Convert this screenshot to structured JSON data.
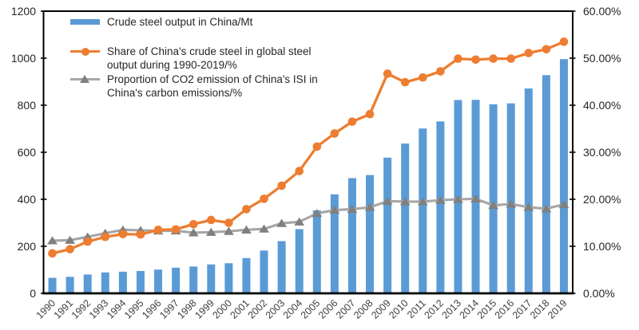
{
  "chart_data": {
    "type": "bar+line combo",
    "title": "",
    "categories": [
      "1990",
      "1991",
      "1992",
      "1993",
      "1994",
      "1995",
      "1996",
      "1997",
      "1998",
      "1999",
      "2000",
      "2001",
      "2002",
      "2003",
      "2004",
      "2005",
      "2006",
      "2007",
      "2008",
      "2009",
      "2010",
      "2011",
      "2012",
      "2013",
      "2014",
      "2015",
      "2016",
      "2017",
      "2018",
      "2019"
    ],
    "series": [
      {
        "name": "Crude steel output in China/Mt",
        "type": "bar",
        "axis": "left",
        "color": "#5B9BD5",
        "values": [
          66,
          70,
          80,
          89,
          92,
          95,
          101,
          109,
          114,
          123,
          128,
          150,
          182,
          222,
          273,
          353,
          421,
          490,
          503,
          577,
          637,
          701,
          731,
          822,
          823,
          804,
          808,
          871,
          928,
          996
        ]
      },
      {
        "name": "Share of China's crude steel in global steel output during 1990-2019/%",
        "type": "line",
        "marker": "circle",
        "axis": "right",
        "color": "#ED7D31",
        "values": [
          8.5,
          9.4,
          11.0,
          12.0,
          12.6,
          12.5,
          13.5,
          13.6,
          14.7,
          15.6,
          15.0,
          17.9,
          20.1,
          22.9,
          26.0,
          31.2,
          34.0,
          36.5,
          38.1,
          46.7,
          44.9,
          45.9,
          47.2,
          49.9,
          49.7,
          49.9,
          49.9,
          51.1,
          51.9,
          53.5
        ]
      },
      {
        "name": "Proportion of CO2 emission of China's ISI in China's carbon emissions/%",
        "type": "line",
        "marker": "triangle",
        "axis": "right",
        "color": "#A6A6A6",
        "marker_color": "#808080",
        "values": [
          11.2,
          11.3,
          12.0,
          12.8,
          13.5,
          13.4,
          13.3,
          13.3,
          12.9,
          13.0,
          13.2,
          13.5,
          13.7,
          14.9,
          15.2,
          17.0,
          17.7,
          17.9,
          18.3,
          19.6,
          19.5,
          19.5,
          19.8,
          20.0,
          20.1,
          18.7,
          19.0,
          18.3,
          18.0,
          18.9
        ]
      }
    ],
    "left_axis": {
      "min": 0,
      "max": 1200,
      "step": 200,
      "tick_labels": [
        "0",
        "200",
        "400",
        "600",
        "800",
        "1000",
        "1200"
      ]
    },
    "right_axis": {
      "min": 0,
      "max": 60,
      "step": 10,
      "tick_labels": [
        "0.00%",
        "10.00%",
        "20.00%",
        "30.00%",
        "40.00%",
        "50.00%",
        "60.00%"
      ]
    },
    "grid": "off",
    "legend": {
      "position": "top-left-inside",
      "items": [
        {
          "marker": "bar-swatch",
          "lines": [
            "Crude steel output in China/Mt"
          ]
        },
        {
          "marker": "line-circle",
          "lines": [
            "Share of China's crude steel in global steel",
            "output during 1990-2019/%"
          ]
        },
        {
          "marker": "line-triangle",
          "lines": [
            "Proportion of CO2 emission of China's ISI in",
            "China's carbon emissions/%"
          ]
        }
      ]
    },
    "text_colors": {
      "axis_labels": "#262626",
      "year_labels": "#404040"
    }
  }
}
